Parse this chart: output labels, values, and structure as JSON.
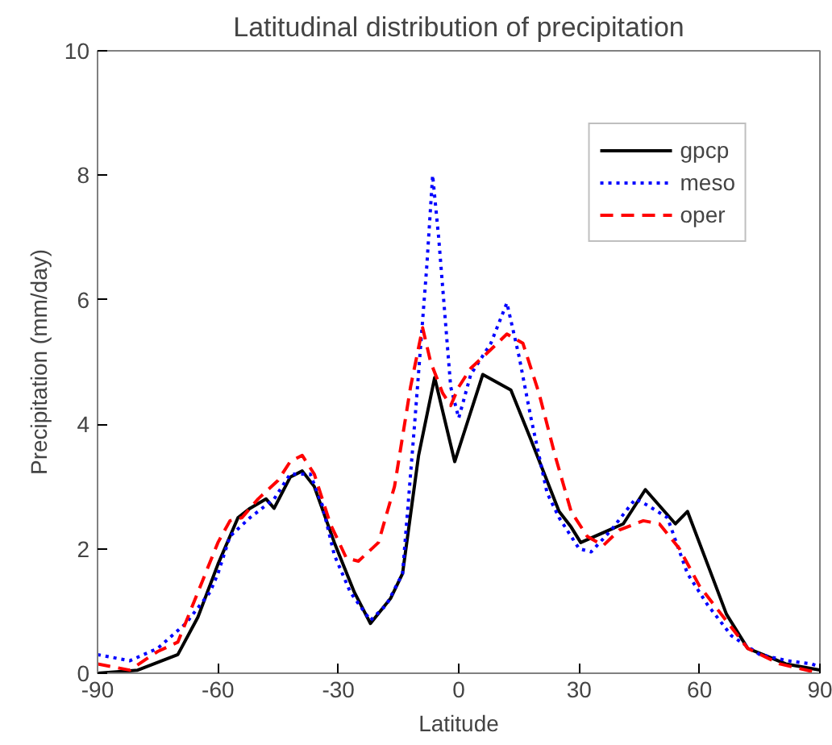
{
  "chart_data": {
    "type": "line",
    "title": "Latitudinal distribution of precipitation",
    "xlabel": "Latitude",
    "ylabel": "Precipitation (mm/day)",
    "xlim": [
      -90,
      90
    ],
    "ylim": [
      0,
      10
    ],
    "xticks": [
      -90,
      -60,
      -30,
      0,
      30,
      60,
      90
    ],
    "yticks": [
      0,
      2,
      4,
      6,
      8,
      10
    ],
    "grid": false,
    "legend": "top right",
    "marker": "none",
    "series": [
      {
        "name": "gpcp",
        "color": "#000000",
        "line_style": "solid",
        "x": [
          -90,
          -80,
          -70,
          -65,
          -60,
          -55,
          -52,
          -48,
          -46,
          -42,
          -39,
          -36,
          -31,
          -26,
          -22,
          -17,
          -14,
          -10,
          -6,
          -1,
          3,
          6,
          13,
          18,
          25,
          28,
          30.4,
          41,
          46.5,
          54,
          57,
          62.6,
          66.7,
          72,
          81.5,
          90
        ],
        "values": [
          0.0,
          0.05,
          0.3,
          0.9,
          1.75,
          2.5,
          2.65,
          2.8,
          2.65,
          3.15,
          3.25,
          3.0,
          2.1,
          1.3,
          0.8,
          1.2,
          1.6,
          3.5,
          4.75,
          3.4,
          4.2,
          4.8,
          4.55,
          3.75,
          2.6,
          2.35,
          2.1,
          2.4,
          2.95,
          2.4,
          2.6,
          1.65,
          0.95,
          0.4,
          0.15,
          0.05
        ]
      },
      {
        "name": "meso",
        "color": "#0000ff",
        "line_style": "dotted",
        "x": [
          -90,
          -82,
          -75,
          -68,
          -62,
          -60,
          -57,
          -52,
          -46,
          -42,
          -37,
          -34,
          -31,
          -27,
          -22,
          -18,
          -14,
          -11,
          -8,
          -6.5,
          -5,
          -2,
          0,
          3,
          8,
          12,
          15,
          18,
          22,
          25,
          30,
          33,
          38,
          44,
          47,
          52,
          57,
          62,
          68,
          75,
          82,
          88,
          90
        ],
        "values": [
          0.3,
          0.2,
          0.4,
          0.8,
          1.3,
          1.6,
          2.2,
          2.5,
          2.8,
          3.2,
          3.2,
          2.7,
          1.9,
          1.3,
          0.85,
          1.1,
          1.6,
          4.0,
          6.5,
          8.0,
          7.0,
          4.6,
          4.1,
          4.8,
          5.3,
          5.95,
          5.1,
          4.1,
          2.9,
          2.5,
          2.0,
          1.95,
          2.3,
          2.8,
          2.7,
          2.5,
          1.6,
          1.1,
          0.6,
          0.3,
          0.2,
          0.15,
          0.1
        ]
      },
      {
        "name": "oper",
        "color": "#ff0000",
        "line_style": "dashed",
        "x": [
          -90,
          -82,
          -75,
          -70,
          -65,
          -60,
          -57,
          -54,
          -50,
          -45,
          -42,
          -39,
          -36,
          -32,
          -28,
          -25,
          -20,
          -16,
          -12,
          -9,
          -7,
          -4,
          -2,
          0,
          3,
          8,
          12,
          16,
          20,
          24,
          28,
          32,
          36,
          40,
          46,
          50,
          55,
          60,
          66,
          72,
          80,
          90
        ],
        "values": [
          0.15,
          0.05,
          0.35,
          0.5,
          1.3,
          2.1,
          2.45,
          2.5,
          2.8,
          3.1,
          3.4,
          3.5,
          3.2,
          2.4,
          1.85,
          1.8,
          2.1,
          3.0,
          4.6,
          5.55,
          5.0,
          4.5,
          4.3,
          4.6,
          4.9,
          5.2,
          5.45,
          5.3,
          4.5,
          3.5,
          2.6,
          2.2,
          2.05,
          2.3,
          2.45,
          2.4,
          2.0,
          1.4,
          0.9,
          0.4,
          0.15,
          0.0
        ]
      }
    ]
  }
}
